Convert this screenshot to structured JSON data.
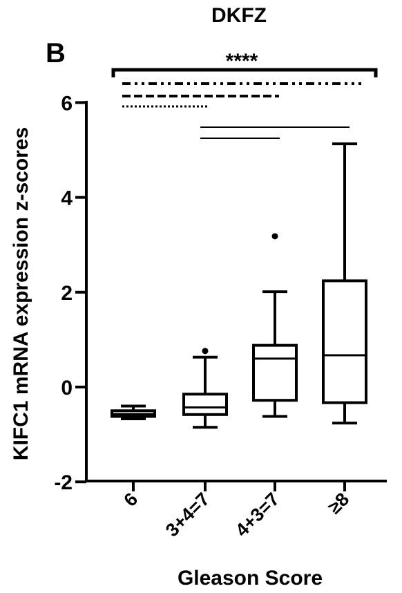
{
  "chart_data": {
    "type": "box",
    "title": "DKFZ",
    "panel_label": "B",
    "xlabel": "Gleason Score",
    "ylabel": "KIFC1 mRNA expression z-scores",
    "ylim": [
      -2,
      6.5
    ],
    "yticks": [
      -2,
      0,
      2,
      4,
      6
    ],
    "ytick_labels": [
      "-2",
      "0",
      "2",
      "4",
      "6"
    ],
    "categories": [
      "6",
      "3+4=7",
      "4+3=7",
      "≥8"
    ],
    "boxes": [
      {
        "category": "6",
        "whisker_low": -0.67,
        "q1": -0.62,
        "median": -0.57,
        "q3": -0.5,
        "whisker_high": -0.4,
        "outliers": []
      },
      {
        "category": "3+4=7",
        "whisker_low": -0.85,
        "q1": -0.58,
        "median": -0.43,
        "q3": -0.15,
        "whisker_high": 0.63,
        "outliers": [
          0.76
        ]
      },
      {
        "category": "4+3=7",
        "whisker_low": -0.62,
        "q1": -0.28,
        "median": 0.6,
        "q3": 0.88,
        "whisker_high": 2.01,
        "outliers": [
          3.18
        ]
      },
      {
        "category": "≥8",
        "whisker_low": -0.76,
        "q1": -0.33,
        "median": 0.67,
        "q3": 2.24,
        "whisker_high": 5.13,
        "outliers": []
      }
    ],
    "significance": {
      "overall_label": "****",
      "overall_span": [
        "6",
        "≥8"
      ],
      "lines": [
        {
          "style": "dash-dot-dot",
          "from": "6",
          "to": "≥8"
        },
        {
          "style": "dashed",
          "from": "6",
          "to": "4+3=7"
        },
        {
          "style": "dotted",
          "from": "6",
          "to": "3+4=7"
        },
        {
          "style": "solid",
          "from": "3+4=7",
          "to": "≥8"
        },
        {
          "style": "solid",
          "from": "3+4=7",
          "to": "4+3=7"
        }
      ]
    }
  }
}
